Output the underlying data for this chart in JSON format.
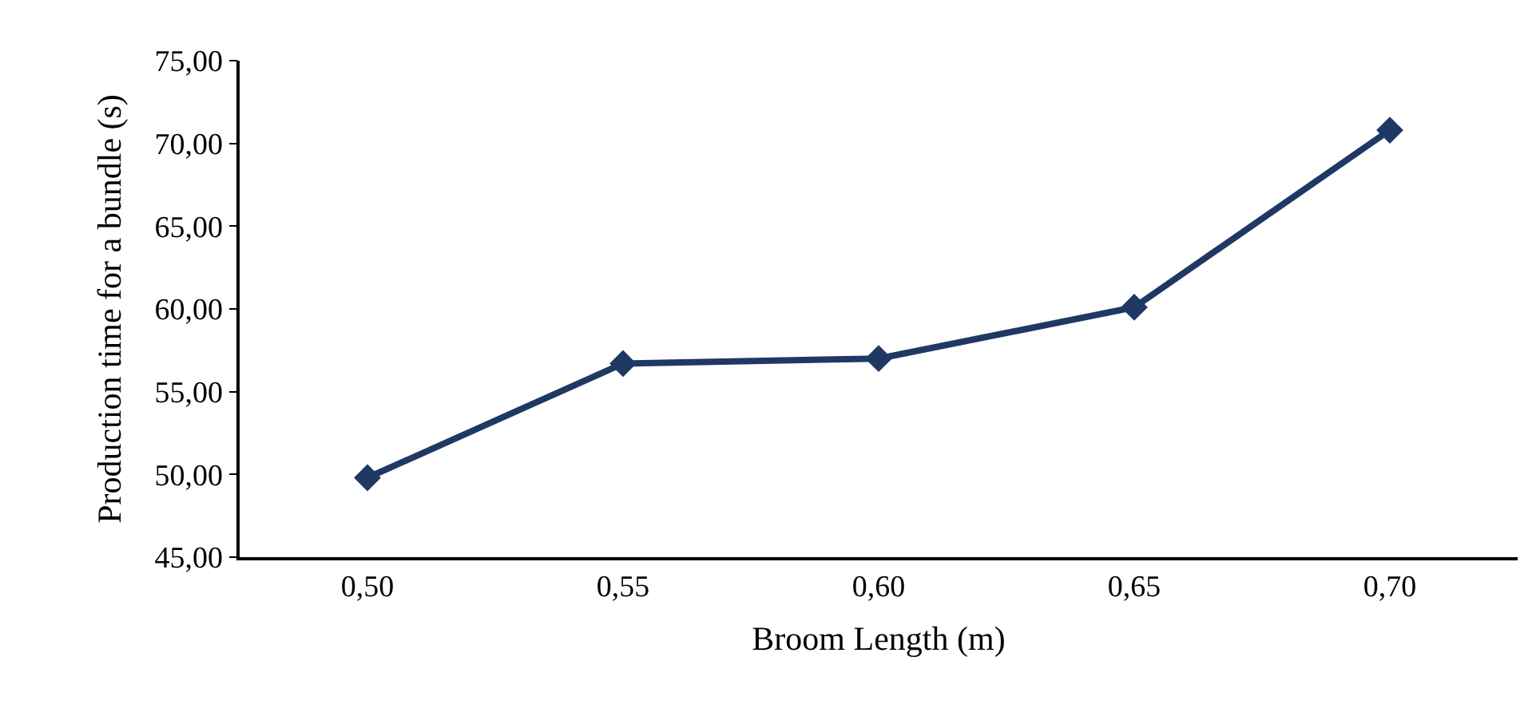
{
  "chart_data": {
    "type": "line",
    "xlabel": "Broom Length (m)",
    "ylabel": "Production time for a bundle (s)",
    "categories": [
      "0,50",
      "0,55",
      "0,60",
      "0,65",
      "0,70"
    ],
    "series": [
      {
        "color": "#203864",
        "values": [
          49.8,
          56.7,
          57.0,
          60.1,
          70.8
        ]
      }
    ],
    "ylim": [
      45,
      75
    ],
    "yticks": [
      {
        "value": 45,
        "label": "45,00"
      },
      {
        "value": 50,
        "label": "50,00"
      },
      {
        "value": 55,
        "label": "55,00"
      },
      {
        "value": 60,
        "label": "60,00"
      },
      {
        "value": 65,
        "label": "65,00"
      },
      {
        "value": 70,
        "label": "70,00"
      },
      {
        "value": 75,
        "label": "75,00"
      }
    ],
    "legend": false,
    "marker": "diamond",
    "line_style": "solid"
  }
}
